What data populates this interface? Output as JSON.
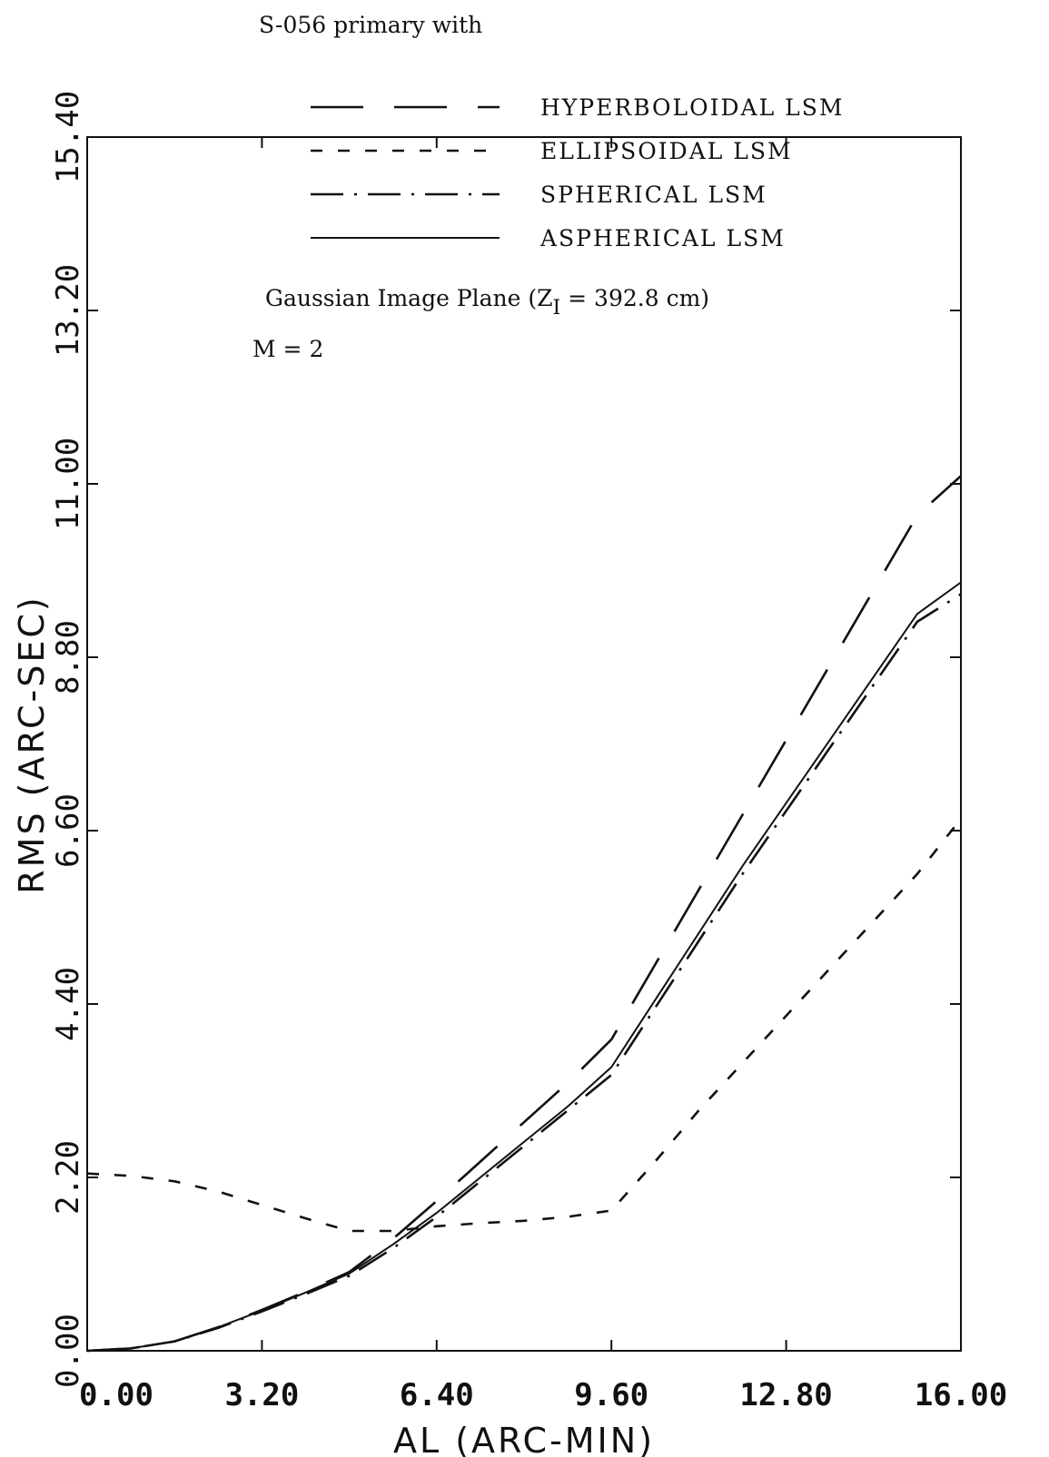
{
  "header_text": "S-056 primary with",
  "chart_data": {
    "type": "line",
    "xlabel": "AL (ARC-MIN)",
    "ylabel": "RMS (ARC-SEC)",
    "xlim": [
      0,
      16
    ],
    "ylim": [
      0,
      15.4
    ],
    "xticks": [
      "0.00",
      "3.20",
      "6.40",
      "9.60",
      "12.80",
      "16.00"
    ],
    "yticks": [
      "0.00",
      "2.20",
      "4.40",
      "6.60",
      "8.80",
      "11.00",
      "13.20",
      "15.40"
    ],
    "grid": false,
    "legend_position": "top",
    "annotations": {
      "plane_prefix": "Gaussian Image Plane (Z",
      "plane_sub": "I",
      "plane_suffix": " = 392.8 cm)",
      "m_value": "M = 2"
    },
    "series": [
      {
        "name": "HYPERBOLOIDAL LSM",
        "dash": "long",
        "x": [
          0,
          0.8,
          1.6,
          2.4,
          3.2,
          4.0,
          4.8,
          5.6,
          6.4,
          7.2,
          8.0,
          8.8,
          9.6,
          10.4,
          11.2,
          12.0,
          12.8,
          13.6,
          14.4,
          15.2,
          16.0
        ],
        "y": [
          0,
          0.03,
          0.12,
          0.3,
          0.52,
          0.75,
          1.0,
          1.42,
          1.9,
          2.4,
          2.9,
          3.4,
          3.95,
          4.9,
          5.85,
          6.8,
          7.75,
          8.7,
          9.65,
          10.6,
          11.1
        ]
      },
      {
        "name": "ELLIPSOIDAL LSM",
        "dash": "short",
        "x": [
          0,
          0.8,
          1.6,
          2.4,
          3.2,
          4.0,
          4.8,
          5.6,
          6.4,
          7.2,
          8.0,
          8.8,
          9.6,
          10.4,
          11.2,
          12.0,
          12.8,
          13.6,
          14.4,
          15.2,
          16.0
        ],
        "y": [
          2.25,
          2.22,
          2.15,
          2.02,
          1.85,
          1.68,
          1.52,
          1.52,
          1.58,
          1.62,
          1.65,
          1.7,
          1.78,
          2.4,
          3.05,
          3.65,
          4.25,
          4.85,
          5.45,
          6.05,
          6.75
        ]
      },
      {
        "name": "SPHERICAL LSM",
        "dash": "dashdot",
        "x": [
          0,
          0.8,
          1.6,
          2.4,
          3.2,
          4.0,
          4.8,
          5.6,
          6.4,
          7.2,
          8.0,
          8.8,
          9.6,
          10.4,
          11.2,
          12.0,
          12.8,
          13.6,
          14.4,
          15.2,
          16.0
        ],
        "y": [
          0,
          0.03,
          0.12,
          0.29,
          0.5,
          0.72,
          0.95,
          1.3,
          1.7,
          2.15,
          2.6,
          3.05,
          3.5,
          4.35,
          5.2,
          6.05,
          6.85,
          7.65,
          8.45,
          9.25,
          9.6
        ]
      },
      {
        "name": "ASPHERICAL LSM",
        "dash": "solid",
        "x": [
          0,
          0.8,
          1.6,
          2.4,
          3.2,
          4.0,
          4.8,
          5.6,
          6.4,
          7.2,
          8.0,
          8.8,
          9.6,
          10.4,
          11.2,
          12.0,
          12.8,
          13.6,
          14.4,
          15.2,
          16.0
        ],
        "y": [
          0,
          0.03,
          0.12,
          0.3,
          0.51,
          0.74,
          0.98,
          1.35,
          1.75,
          2.2,
          2.65,
          3.1,
          3.6,
          4.45,
          5.3,
          6.15,
          6.95,
          7.75,
          8.55,
          9.35,
          9.75
        ]
      }
    ]
  }
}
